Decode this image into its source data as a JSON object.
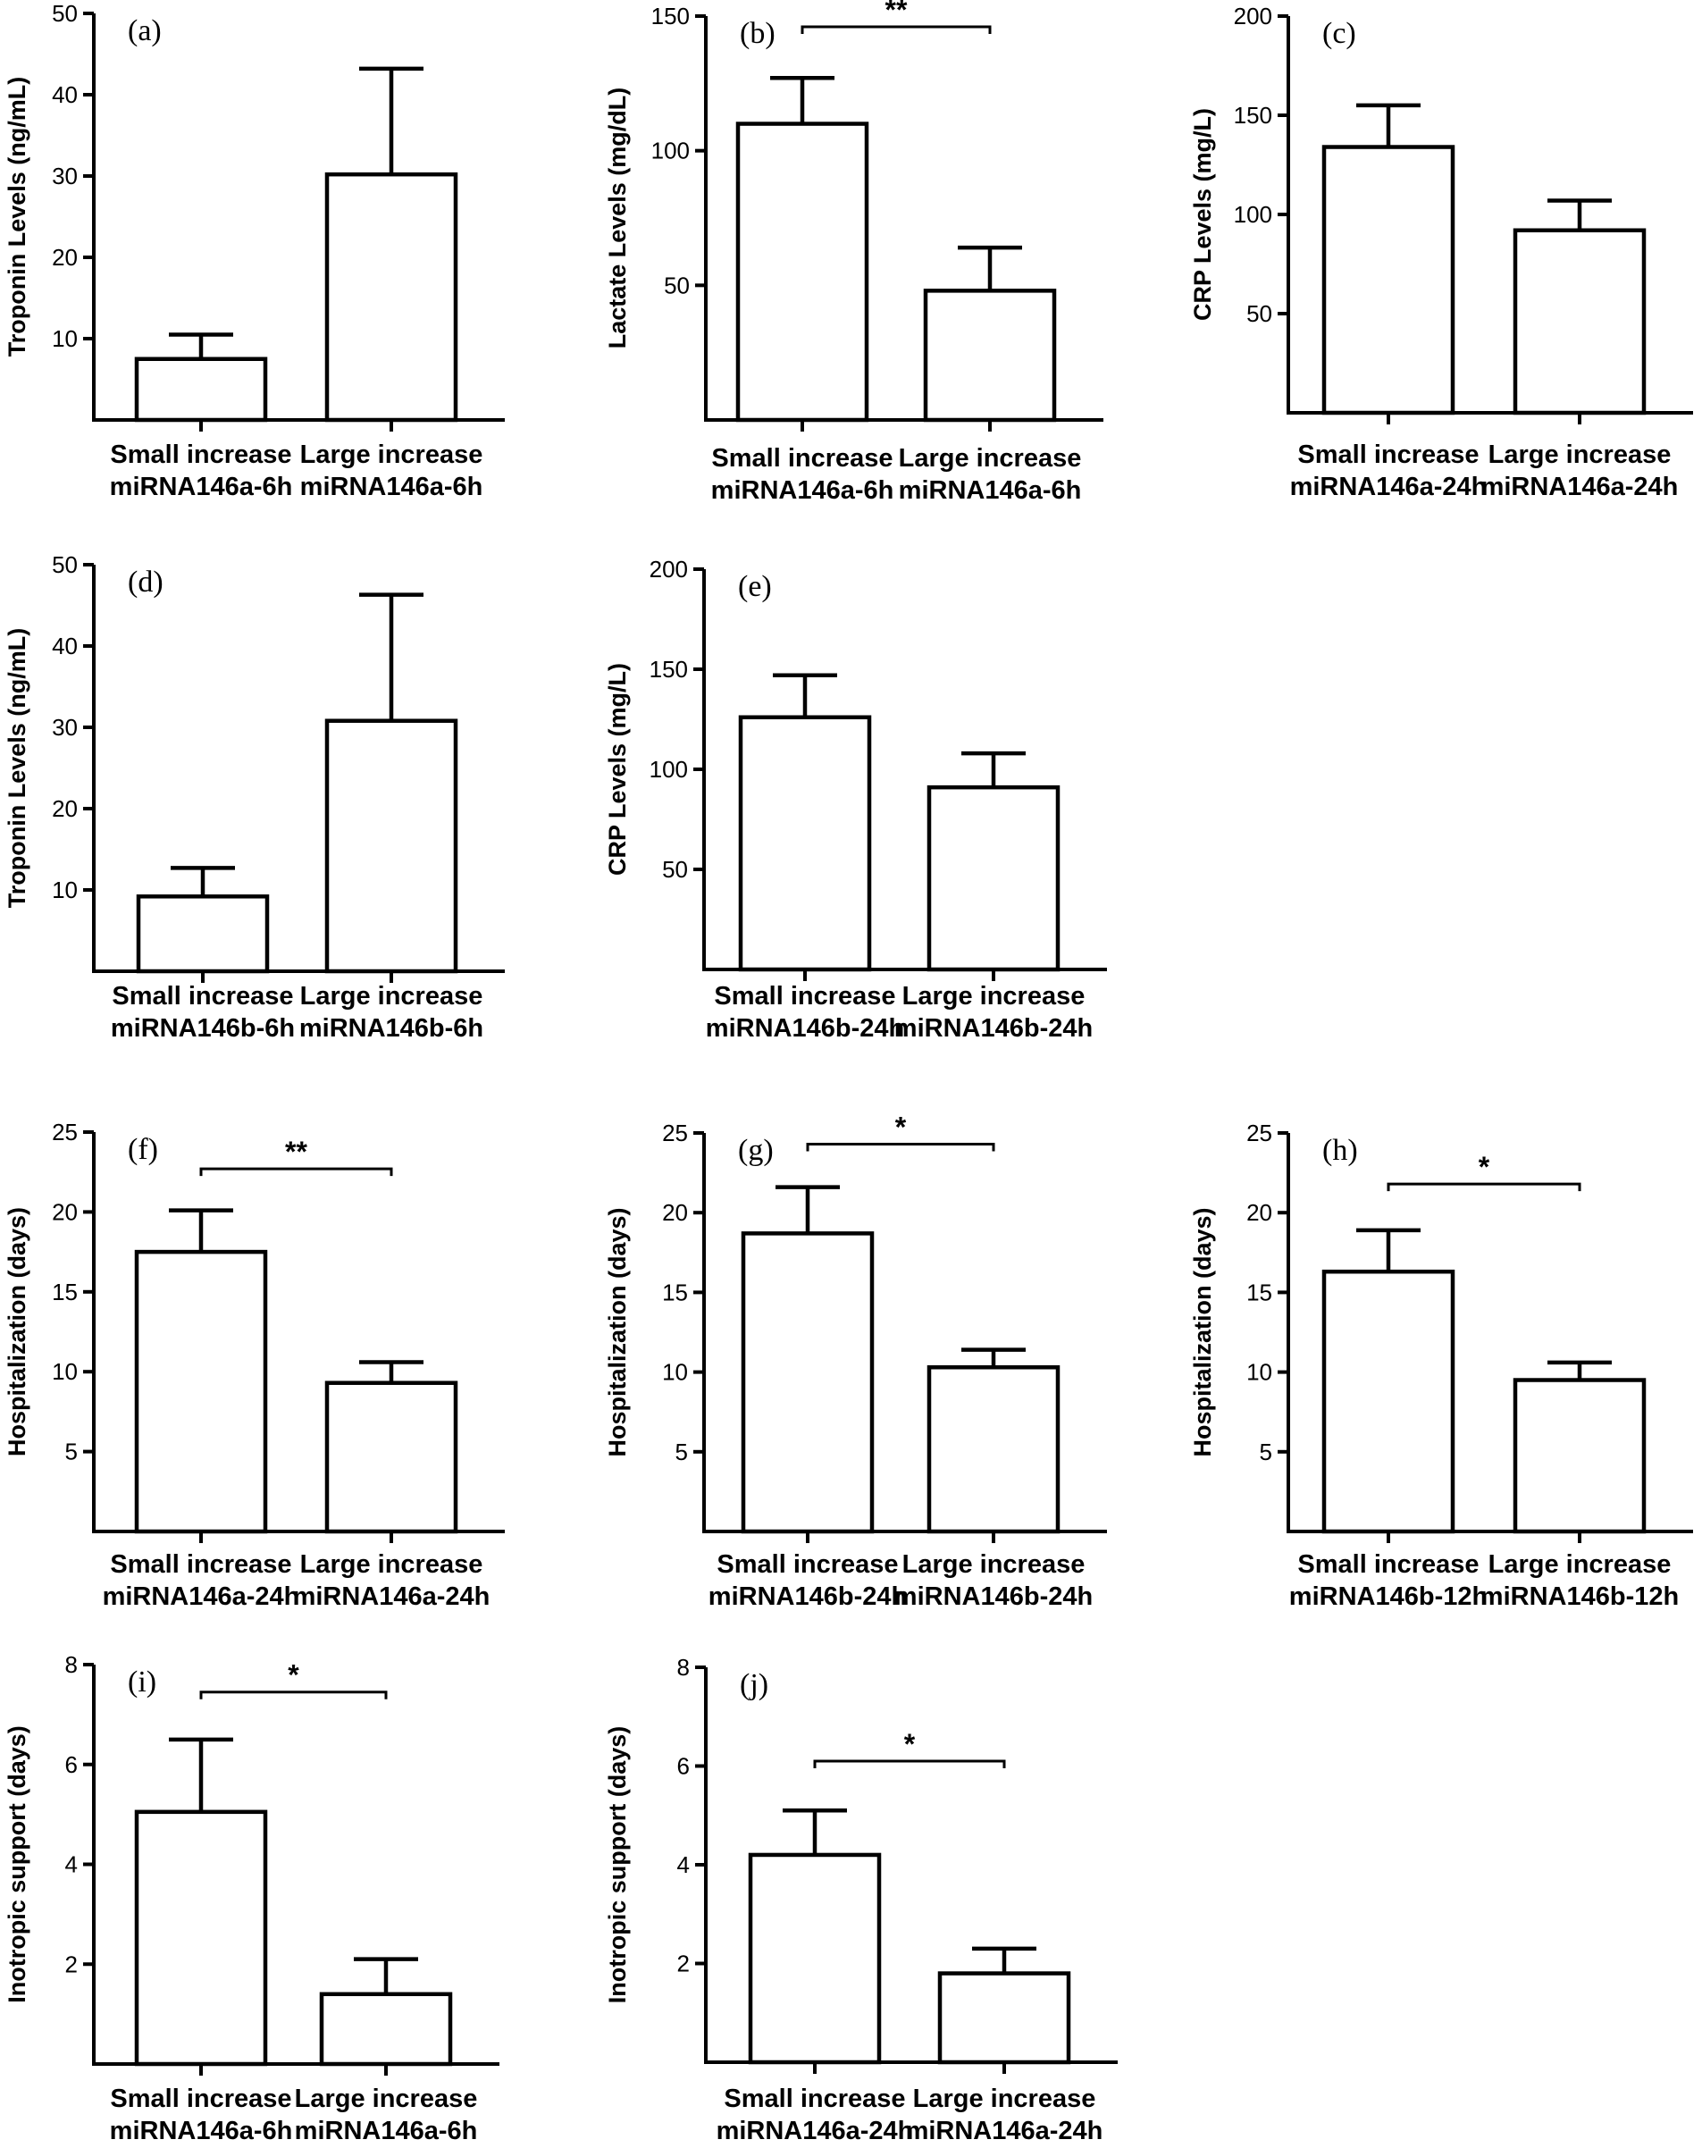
{
  "chart_data": [
    {
      "id": "a",
      "type": "bar",
      "panel_label": "(a)",
      "ylabel": "Troponin Levels (ng/mL)",
      "ylim": [
        0,
        50
      ],
      "yticks": [
        10,
        20,
        30,
        40,
        50
      ],
      "categories": [
        "Small increase\nmiRNA146a-6h",
        "Large increase\nmiRNA146a-6h"
      ],
      "values": [
        7.5,
        30.2
      ],
      "errors": [
        3.0,
        13.0
      ],
      "significance": null
    },
    {
      "id": "b",
      "type": "bar",
      "panel_label": "(b)",
      "ylabel": "Lactate Levels (mg/dL)",
      "ylim": [
        0,
        150
      ],
      "yticks": [
        50,
        100,
        150
      ],
      "categories": [
        "Small increase\nmiRNA146a-6h",
        "Large increase\nmiRNA146a-6h"
      ],
      "values": [
        110,
        48
      ],
      "errors": [
        17,
        16
      ],
      "significance": {
        "label": "**",
        "y": 146
      }
    },
    {
      "id": "c",
      "type": "bar",
      "panel_label": "(c)",
      "ylabel": "CRP Levels (mg/L)",
      "ylim": [
        0,
        200
      ],
      "yticks": [
        50,
        100,
        150,
        200
      ],
      "categories": [
        "Small increase\nmiRNA146a-24h",
        "Large increase\nmiRNA146a-24h"
      ],
      "values": [
        134,
        92
      ],
      "errors": [
        21,
        15
      ],
      "significance": null
    },
    {
      "id": "d",
      "type": "bar",
      "panel_label": "(d)",
      "ylabel": "Troponin Levels (ng/mL)",
      "ylim": [
        0,
        50
      ],
      "yticks": [
        10,
        20,
        30,
        40,
        50
      ],
      "categories": [
        "Small increase\nmiRNA146b-6h",
        "Large increase\nmiRNA146b-6h"
      ],
      "values": [
        9.2,
        30.8
      ],
      "errors": [
        3.5,
        15.5
      ],
      "significance": null
    },
    {
      "id": "e",
      "type": "bar",
      "panel_label": "(e)",
      "ylabel": "CRP Levels (mg/L)",
      "ylim": [
        0,
        200
      ],
      "yticks": [
        50,
        100,
        150,
        200
      ],
      "categories": [
        "Small increase\nmiRNA146b-24h",
        "Large increase\nmiRNA146b-24h"
      ],
      "values": [
        126,
        91
      ],
      "errors": [
        21,
        17
      ],
      "significance": null
    },
    {
      "id": "f",
      "type": "bar",
      "panel_label": "(f)",
      "ylabel": "Hospitalization (days)",
      "ylim": [
        0,
        25
      ],
      "yticks": [
        5,
        10,
        15,
        20,
        25
      ],
      "categories": [
        "Small increase\nmiRNA146a-24h",
        "Large increase\nmiRNA146a-24h"
      ],
      "values": [
        17.5,
        9.3
      ],
      "errors": [
        2.6,
        1.3
      ],
      "significance": {
        "label": "**",
        "y": 22.7
      }
    },
    {
      "id": "g",
      "type": "bar",
      "panel_label": "(g)",
      "ylabel": "Hospitalization (days)",
      "ylim": [
        0,
        25
      ],
      "yticks": [
        5,
        10,
        15,
        20,
        25
      ],
      "categories": [
        "Small increase\nmiRNA146b-24h",
        "Large increase\nmiRNA146b-24h"
      ],
      "values": [
        18.7,
        10.3
      ],
      "errors": [
        2.9,
        1.1
      ],
      "significance": {
        "label": "*",
        "y": 24.3
      }
    },
    {
      "id": "h",
      "type": "bar",
      "panel_label": "(h)",
      "ylabel": "Hospitalization (days)",
      "ylim": [
        0,
        25
      ],
      "yticks": [
        5,
        10,
        15,
        20,
        25
      ],
      "categories": [
        "Small increase\nmiRNA146b-12h",
        "Large increase\nmiRNA146b-12h"
      ],
      "values": [
        16.3,
        9.5
      ],
      "errors": [
        2.6,
        1.1
      ],
      "significance": {
        "label": "*",
        "y": 21.8
      }
    },
    {
      "id": "i",
      "type": "bar",
      "panel_label": "(i)",
      "ylabel": "Inotropic support (days)",
      "ylim": [
        0,
        8
      ],
      "yticks": [
        2,
        4,
        6,
        8
      ],
      "categories": [
        "Small increase\nmiRNA146a-6h",
        "Large increase\nmiRNA146a-6h"
      ],
      "values": [
        5.05,
        1.4
      ],
      "errors": [
        1.45,
        0.7
      ],
      "significance": {
        "label": "*",
        "y": 7.45
      }
    },
    {
      "id": "j",
      "type": "bar",
      "panel_label": "(j)",
      "ylabel": "Inotropic support (days)",
      "ylim": [
        0,
        8
      ],
      "yticks": [
        2,
        4,
        6,
        8
      ],
      "categories": [
        "Small increase\nmiRNA146a-24h",
        "Large increase\nmiRNA146a-24h"
      ],
      "values": [
        4.2,
        1.8
      ],
      "errors": [
        0.9,
        0.5
      ],
      "significance": {
        "label": "*",
        "y": 6.1
      }
    }
  ]
}
